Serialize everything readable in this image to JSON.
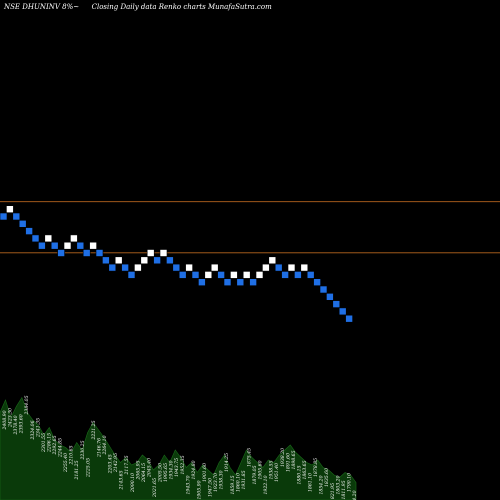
{
  "header": {
    "symbol": "NSE DHUNINV 8%~",
    "subtitle": "Closing Daily data Renko charts MunafaSutra.com"
  },
  "colors": {
    "background": "#000000",
    "up_brick": "#ffffff",
    "down_brick": "#1f6fe5",
    "reference_line": "#b8661f",
    "volume_fill": "#0a3a0a",
    "volume_stroke": "#1a6a1a",
    "label_color": "#ffffff"
  },
  "chart_data": {
    "type": "renko",
    "bricks": [
      {
        "level": 0,
        "dir": "down"
      },
      {
        "level": 1,
        "dir": "up"
      },
      {
        "level": 0,
        "dir": "down"
      },
      {
        "level": -1,
        "dir": "down"
      },
      {
        "level": -2,
        "dir": "down"
      },
      {
        "level": -3,
        "dir": "down"
      },
      {
        "level": -4,
        "dir": "down"
      },
      {
        "level": -3,
        "dir": "up"
      },
      {
        "level": -4,
        "dir": "down"
      },
      {
        "level": -5,
        "dir": "down"
      },
      {
        "level": -4,
        "dir": "up"
      },
      {
        "level": -3,
        "dir": "up"
      },
      {
        "level": -4,
        "dir": "down"
      },
      {
        "level": -5,
        "dir": "down"
      },
      {
        "level": -4,
        "dir": "up"
      },
      {
        "level": -5,
        "dir": "down"
      },
      {
        "level": -6,
        "dir": "down"
      },
      {
        "level": -7,
        "dir": "down"
      },
      {
        "level": -6,
        "dir": "up"
      },
      {
        "level": -7,
        "dir": "down"
      },
      {
        "level": -8,
        "dir": "down"
      },
      {
        "level": -7,
        "dir": "up"
      },
      {
        "level": -6,
        "dir": "up"
      },
      {
        "level": -5,
        "dir": "up"
      },
      {
        "level": -6,
        "dir": "down"
      },
      {
        "level": -5,
        "dir": "up"
      },
      {
        "level": -6,
        "dir": "down"
      },
      {
        "level": -7,
        "dir": "down"
      },
      {
        "level": -8,
        "dir": "down"
      },
      {
        "level": -7,
        "dir": "up"
      },
      {
        "level": -8,
        "dir": "down"
      },
      {
        "level": -9,
        "dir": "down"
      },
      {
        "level": -8,
        "dir": "up"
      },
      {
        "level": -7,
        "dir": "up"
      },
      {
        "level": -8,
        "dir": "down"
      },
      {
        "level": -9,
        "dir": "down"
      },
      {
        "level": -8,
        "dir": "up"
      },
      {
        "level": -9,
        "dir": "down"
      },
      {
        "level": -8,
        "dir": "up"
      },
      {
        "level": -9,
        "dir": "down"
      },
      {
        "level": -8,
        "dir": "up"
      },
      {
        "level": -7,
        "dir": "up"
      },
      {
        "level": -6,
        "dir": "up"
      },
      {
        "level": -7,
        "dir": "down"
      },
      {
        "level": -8,
        "dir": "down"
      },
      {
        "level": -7,
        "dir": "up"
      },
      {
        "level": -8,
        "dir": "down"
      },
      {
        "level": -7,
        "dir": "up"
      },
      {
        "level": -8,
        "dir": "down"
      },
      {
        "level": -9,
        "dir": "down"
      },
      {
        "level": -10,
        "dir": "down"
      },
      {
        "level": -11,
        "dir": "down"
      },
      {
        "level": -12,
        "dir": "down"
      },
      {
        "level": -13,
        "dir": "down"
      },
      {
        "level": -14,
        "dir": "down"
      }
    ],
    "reference_levels": [
      1,
      -6
    ],
    "volume_profile": [
      0.7,
      0.8,
      0.66,
      0.75,
      0.82,
      0.7,
      0.64,
      0.6,
      0.52,
      0.58,
      0.48,
      0.44,
      0.42,
      0.38,
      0.46,
      0.4,
      0.54,
      0.62,
      0.56,
      0.5,
      0.43,
      0.36,
      0.3,
      0.34,
      0.28,
      0.3,
      0.36,
      0.32,
      0.24,
      0.28,
      0.36,
      0.3,
      0.4,
      0.34,
      0.26,
      0.3,
      0.22,
      0.28,
      0.24,
      0.2,
      0.3,
      0.36,
      0.26,
      0.2,
      0.3,
      0.4,
      0.34,
      0.3,
      0.26,
      0.32,
      0.3,
      0.36,
      0.4,
      0.44,
      0.38,
      0.34,
      0.3,
      0.28,
      0.32,
      0.26,
      0.24,
      0.2,
      0.18,
      0.22,
      0.2,
      0.14
    ],
    "price_labels": [
      "2408.90",
      "2423.30",
      "2378.40",
      "2393.60",
      "2384.05",
      "2324.06",
      "2341.35",
      "2301.55",
      "2286.15",
      "2292.65",
      "2244.85",
      "2255.40",
      "2210.65",
      "2181.25",
      "2230.25",
      "2225.05",
      "2221.25",
      "2146.76",
      "2264.10",
      "2203.45",
      "2142.95",
      "2143.65",
      "2117.55",
      "2090.10",
      "2065.95",
      "2064.15",
      "2045.40",
      "2021.65",
      "2005.50",
      "1995.65",
      "1934.30",
      "1943.75",
      "1952.35",
      "1943.70",
      "1924.80",
      "1905.90",
      "1901.60",
      "1947.50",
      "1923.70",
      "1938.30",
      "1914.25",
      "1859.15",
      "1860.10",
      "1931.85",
      "1875.45",
      "1879.05",
      "1905.60",
      "1922.10",
      "1938.55",
      "1951.40",
      "1938.20",
      "1891.60",
      "1898.65",
      "1880.15",
      "1863.65",
      "1861.10",
      "1878.85",
      "1854.20",
      "1835.60",
      "1821.95",
      "1803.20",
      "1811.95",
      "1790.10",
      "1764.20"
    ]
  }
}
